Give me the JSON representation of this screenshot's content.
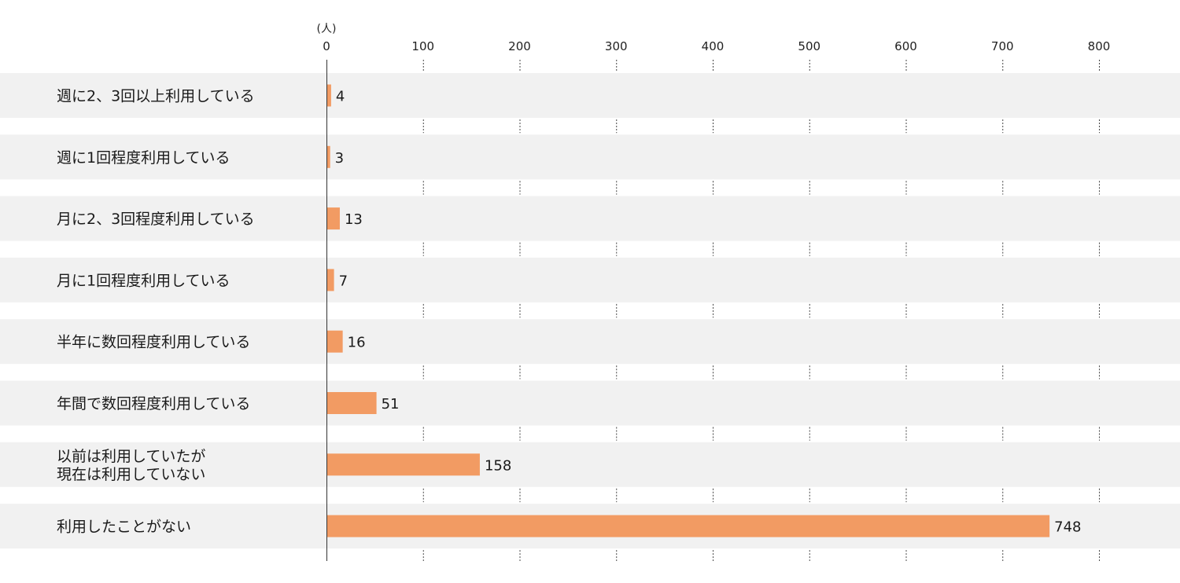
{
  "chart_data": {
    "type": "bar",
    "orientation": "horizontal",
    "unit": "(人)",
    "categories": [
      [
        "週に2、3回以上利用している"
      ],
      [
        "週に1回程度利用している"
      ],
      [
        "月に2、3回程度利用している"
      ],
      [
        "月に1回程度利用している"
      ],
      [
        "半年に数回程度利用している"
      ],
      [
        "年間で数回程度利用している"
      ],
      [
        "以前は利用していたが",
        "現在は利用していない"
      ],
      [
        "利用したことがない"
      ]
    ],
    "values": [
      4,
      3,
      13,
      7,
      16,
      51,
      158,
      748
    ],
    "xlim": [
      0,
      800
    ],
    "xticks": [
      "0",
      "100",
      "200",
      "300",
      "400",
      "500",
      "600",
      "700",
      "800"
    ],
    "bar_color": "#f29b63",
    "row_background_color": "#f1f1f1",
    "grid": true
  }
}
